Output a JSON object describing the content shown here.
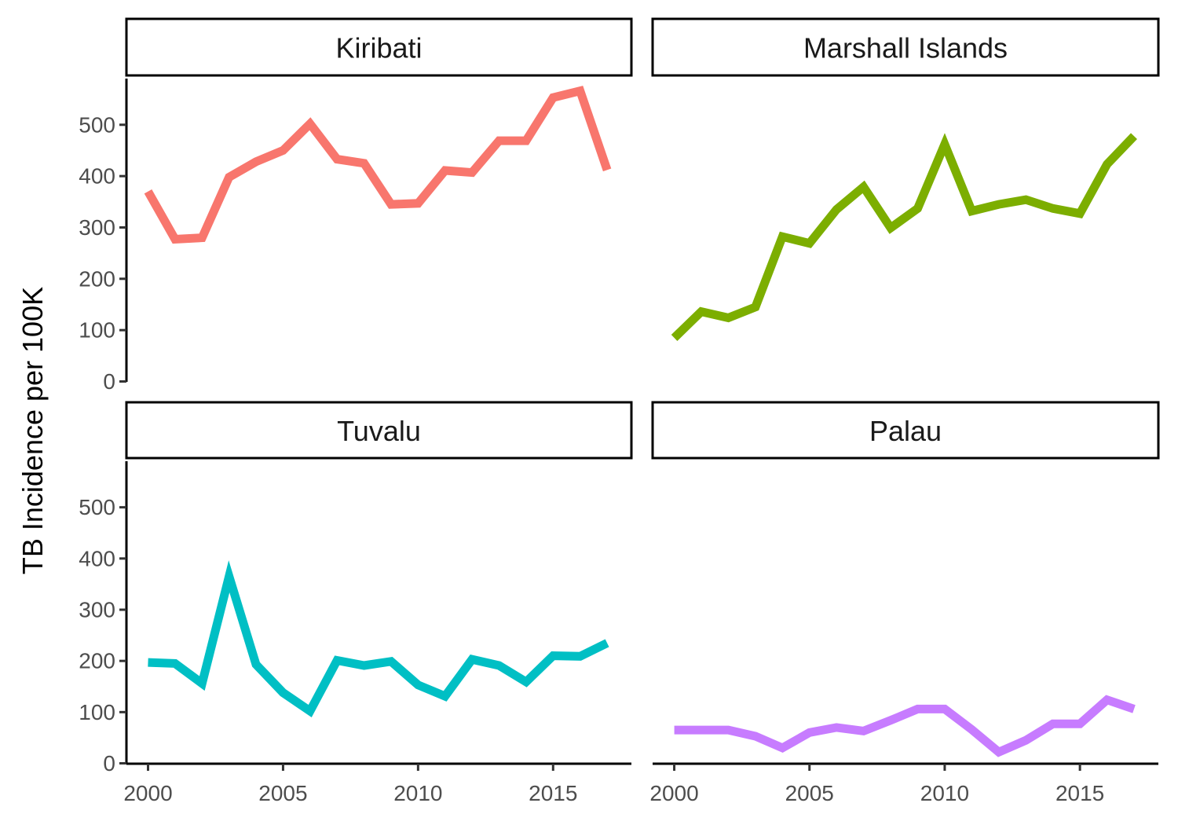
{
  "chart_data": {
    "type": "line",
    "ylabel": "TB Incidence per 100K",
    "xlabel": "",
    "x": [
      2000,
      2001,
      2002,
      2003,
      2004,
      2005,
      2006,
      2007,
      2008,
      2009,
      2010,
      2011,
      2012,
      2013,
      2014,
      2015,
      2016,
      2017
    ],
    "xticks": [
      "2000",
      "2005",
      "2010",
      "2015"
    ],
    "yticks": [
      "0",
      "100",
      "200",
      "300",
      "400",
      "500"
    ],
    "xlim": [
      1999.2,
      2017.9
    ],
    "ylim": [
      0,
      590
    ],
    "facets": [
      {
        "name": "Kiribati",
        "color": "#F8766D",
        "values": [
          370,
          277,
          280,
          398,
          428,
          450,
          502,
          433,
          425,
          345,
          347,
          411,
          407,
          469,
          469,
          553,
          566,
          412
        ]
      },
      {
        "name": "Marshall Islands",
        "color": "#7CAE00",
        "values": [
          85,
          136,
          124,
          145,
          282,
          269,
          335,
          379,
          299,
          337,
          462,
          332,
          345,
          354,
          337,
          327,
          423,
          478
        ]
      },
      {
        "name": "Tuvalu",
        "color": "#00BFC4",
        "values": [
          197,
          195,
          156,
          365,
          193,
          138,
          102,
          201,
          191,
          199,
          153,
          131,
          203,
          191,
          159,
          210,
          209,
          235
        ]
      },
      {
        "name": "Palau",
        "color": "#C77CFF",
        "values": [
          65,
          65,
          65,
          53,
          30,
          60,
          70,
          63,
          84,
          106,
          106,
          66,
          22,
          45,
          77,
          77,
          124,
          106
        ]
      }
    ]
  }
}
